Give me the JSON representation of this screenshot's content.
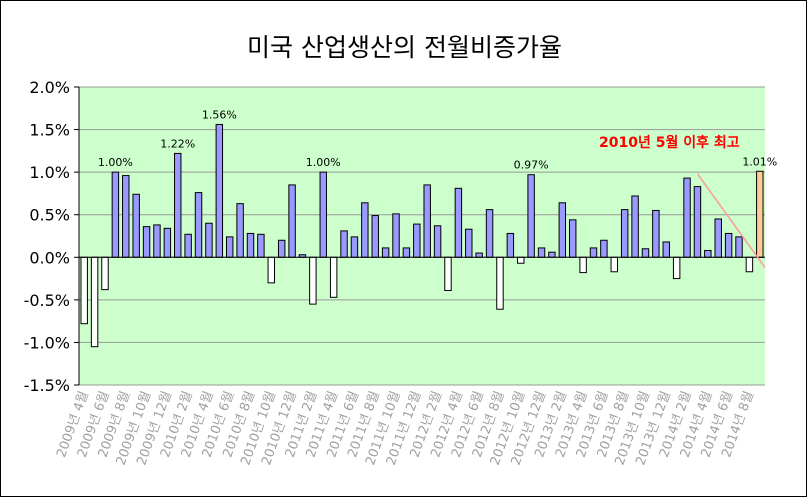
{
  "chart_data": {
    "type": "bar",
    "title": "미국 산업생산의 전월비증가율",
    "annotation": "2010년 5월 이후 최고",
    "ylim": [
      -1.5,
      2.0
    ],
    "yticks": [
      {
        "value": 2.0,
        "label": "2.0%"
      },
      {
        "value": 1.5,
        "label": "1.5%"
      },
      {
        "value": 1.0,
        "label": "1.0%"
      },
      {
        "value": 0.5,
        "label": "0.5%"
      },
      {
        "value": 0.0,
        "label": "0.0%"
      },
      {
        "value": -0.5,
        "label": "-0.5%"
      },
      {
        "value": -1.0,
        "label": "-1.0%"
      },
      {
        "value": -1.5,
        "label": "-1.5%"
      }
    ],
    "grid": true,
    "xlabels": [
      "2009년 4월",
      "2009년 6월",
      "2009년 8월",
      "2009년 10월",
      "2009년 12월",
      "2010년 2월",
      "2010년 4월",
      "2010년 6월",
      "2010년 8월",
      "2010년 10월",
      "2010년 12월",
      "2011년 2월",
      "2011년 4월",
      "2011년 6월",
      "2011년 8월",
      "2011년 10월",
      "2011년 12월",
      "2012년 2월",
      "2012년 4월",
      "2012년 6월",
      "2012년 8월",
      "2012년 10월",
      "2012년 12월",
      "2013년 2월",
      "2013년 4월",
      "2013년 6월",
      "2013년 8월",
      "2013년 10월",
      "2013년 12월",
      "2014년 2월",
      "2014년 4월",
      "2014년 6월",
      "2014년 8월"
    ],
    "values": [
      -0.78,
      -1.05,
      -0.38,
      1.0,
      0.96,
      0.74,
      0.36,
      0.38,
      0.34,
      1.22,
      0.27,
      0.76,
      0.4,
      1.56,
      0.24,
      0.63,
      0.28,
      0.27,
      -0.3,
      0.2,
      0.85,
      0.03,
      -0.55,
      1.0,
      -0.47,
      0.31,
      0.24,
      0.64,
      0.49,
      0.11,
      0.51,
      0.11,
      0.39,
      0.85,
      0.37,
      -0.39,
      0.81,
      0.33,
      0.05,
      0.56,
      -0.61,
      0.28,
      -0.07,
      0.97,
      0.11,
      0.06,
      0.64,
      0.44,
      -0.18,
      0.11,
      0.2,
      -0.17,
      0.56,
      0.72,
      0.1,
      0.55,
      0.18,
      -0.25,
      0.93,
      0.83,
      0.08,
      0.45,
      0.28,
      0.24,
      -0.17,
      1.01
    ],
    "value_labels": [
      {
        "index": 3,
        "text": "1.00%"
      },
      {
        "index": 9,
        "text": "1.22%"
      },
      {
        "index": 13,
        "text": "1.56%"
      },
      {
        "index": 23,
        "text": "1.00%"
      },
      {
        "index": 43,
        "text": "0.97%"
      },
      {
        "index": 65,
        "text": "1.01%"
      }
    ],
    "highlight_index": 65,
    "colors": {
      "plot_bg": "#ccffcc",
      "positive": "#9999ff",
      "negative": "#ffffff",
      "highlight": "#ffcc99",
      "annotation": "#ff0000",
      "trendline": "#ff9999",
      "xlabel": "#a0a0a0"
    }
  }
}
